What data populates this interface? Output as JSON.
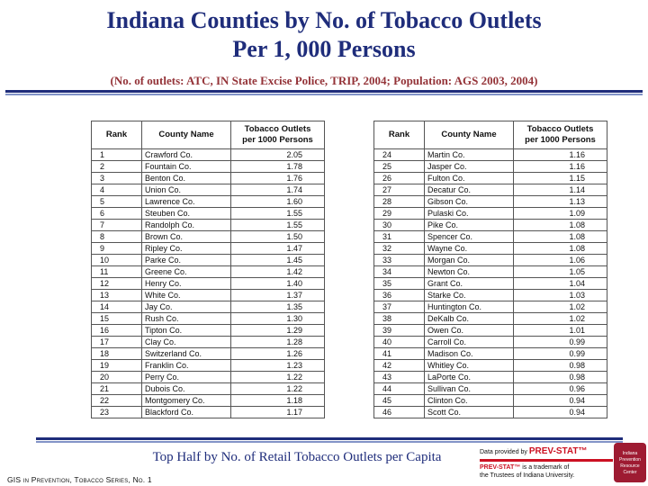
{
  "slide": {
    "title_line1": "Indiana Counties by No. of Tobacco Outlets",
    "title_line2": "Per 1, 000 Persons",
    "subtitle": "(No. of outlets:  ATC, IN State Excise Police, TRIP, 2004; Population: AGS 2003, 2004)",
    "caption": "Top Half by No. of Retail Tobacco Outlets per Capita",
    "footer_left": "GIS in Prevention, Tobacco Series, No. 1"
  },
  "table_header": {
    "rank": "Rank",
    "county": "County Name",
    "outlets_line1": "Tobacco Outlets",
    "outlets_line2": "per 1000 Persons"
  },
  "tables": {
    "left": {
      "rows": [
        [
          "1",
          "Crawford Co.",
          "2.05"
        ],
        [
          "2",
          "Fountain Co.",
          "1.78"
        ],
        [
          "3",
          "Benton Co.",
          "1.76"
        ],
        [
          "4",
          "Union Co.",
          "1.74"
        ],
        [
          "5",
          "Lawrence Co.",
          "1.60"
        ],
        [
          "6",
          "Steuben Co.",
          "1.55"
        ],
        [
          "7",
          "Randolph Co.",
          "1.55"
        ],
        [
          "8",
          "Brown Co.",
          "1.50"
        ],
        [
          "9",
          "Ripley Co.",
          "1.47"
        ],
        [
          "10",
          "Parke Co.",
          "1.45"
        ],
        [
          "11",
          "Greene Co.",
          "1.42"
        ],
        [
          "12",
          "Henry Co.",
          "1.40"
        ],
        [
          "13",
          "White Co.",
          "1.37"
        ],
        [
          "14",
          "Jay Co.",
          "1.35"
        ],
        [
          "15",
          "Rush Co.",
          "1.30"
        ],
        [
          "16",
          "Tipton Co.",
          "1.29"
        ],
        [
          "17",
          "Clay Co.",
          "1.28"
        ],
        [
          "18",
          "Switzerland Co.",
          "1.26"
        ],
        [
          "19",
          "Franklin Co.",
          "1.23"
        ],
        [
          "20",
          "Perry Co.",
          "1.22"
        ],
        [
          "21",
          "Dubois Co.",
          "1.22"
        ],
        [
          "22",
          "Montgomery Co.",
          "1.18"
        ],
        [
          "23",
          "Blackford Co.",
          "1.17"
        ]
      ]
    },
    "right": {
      "rows": [
        [
          "24",
          "Martin Co.",
          "1.16"
        ],
        [
          "25",
          "Jasper Co.",
          "1.16"
        ],
        [
          "26",
          "Fulton Co.",
          "1.15"
        ],
        [
          "27",
          "Decatur Co.",
          "1.14"
        ],
        [
          "28",
          "Gibson Co.",
          "1.13"
        ],
        [
          "29",
          "Pulaski Co.",
          "1.09"
        ],
        [
          "30",
          "Pike Co.",
          "1.08"
        ],
        [
          "31",
          "Spencer Co.",
          "1.08"
        ],
        [
          "32",
          "Wayne Co.",
          "1.08"
        ],
        [
          "33",
          "Morgan Co.",
          "1.06"
        ],
        [
          "34",
          "Newton Co.",
          "1.05"
        ],
        [
          "35",
          "Grant Co.",
          "1.04"
        ],
        [
          "36",
          "Starke Co.",
          "1.03"
        ],
        [
          "37",
          "Huntington Co.",
          "1.02"
        ],
        [
          "38",
          "DeKalb Co.",
          "1.02"
        ],
        [
          "39",
          "Owen Co.",
          "1.01"
        ],
        [
          "40",
          "Carroll Co.",
          "0.99"
        ],
        [
          "41",
          "Madison Co.",
          "0.99"
        ],
        [
          "42",
          "Whitley Co.",
          "0.98"
        ],
        [
          "43",
          "LaPorte Co.",
          "0.98"
        ],
        [
          "44",
          "Sullivan Co.",
          "0.96"
        ],
        [
          "45",
          "Clinton Co.",
          "0.94"
        ],
        [
          "46",
          "Scott Co.",
          "0.94"
        ]
      ]
    }
  },
  "credits": {
    "data_provided_prefix": "Data provided by ",
    "brand": "PREV-STAT™",
    "trademark_suffix": " is a trademark of",
    "trustees_line": "the Trustees of Indiana University.",
    "logo_lines": [
      "Indiana",
      "Prevention",
      "Resource",
      "Center"
    ]
  },
  "colors": {
    "title_navy": "#1f2d7b",
    "subtitle_maroon": "#943338",
    "divider_navy": "#1f2d7b",
    "divider_light": "#8293c7",
    "brand_red": "#cc1122",
    "logo_crimson": "#9e1b32"
  }
}
